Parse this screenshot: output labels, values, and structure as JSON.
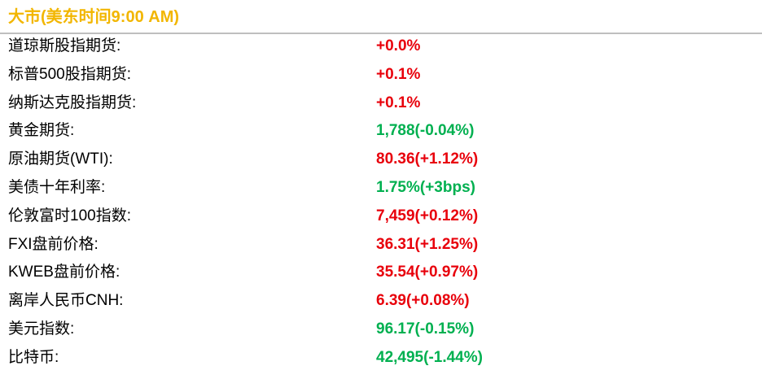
{
  "header": {
    "title": "大市(美东时间9:00 AM)"
  },
  "table": {
    "rows": [
      {
        "label": "道琼斯股指期货:",
        "value": "+0.0%",
        "color": "#e8000b"
      },
      {
        "label": "标普500股指期货:",
        "value": "+0.1%",
        "color": "#e8000b"
      },
      {
        "label": "纳斯达克股指期货:",
        "value": "+0.1%",
        "color": "#e8000b"
      },
      {
        "label": "黄金期货:",
        "value": "1,788(-0.04%)",
        "color": "#00b050"
      },
      {
        "label": "原油期货(WTI):",
        "value": "80.36(+1.12%)",
        "color": "#e8000b"
      },
      {
        "label": "美债十年利率:",
        "value": "1.75%(+3bps)",
        "color": "#00b050"
      },
      {
        "label": "伦敦富时100指数:",
        "value": "7,459(+0.12%)",
        "color": "#e8000b"
      },
      {
        "label": "FXI盘前价格:",
        "value": "36.31(+1.25%)",
        "color": "#e8000b"
      },
      {
        "label": "KWEB盘前价格:",
        "value": "35.54(+0.97%)",
        "color": "#e8000b"
      },
      {
        "label": "离岸人民币CNH:",
        "value": "6.39(+0.08%)",
        "color": "#e8000b"
      },
      {
        "label": "美元指数:",
        "value": "96.17(-0.15%)",
        "color": "#00b050"
      },
      {
        "label": "比特币:",
        "value": "42,495(-1.44%)",
        "color": "#00b050"
      }
    ]
  }
}
